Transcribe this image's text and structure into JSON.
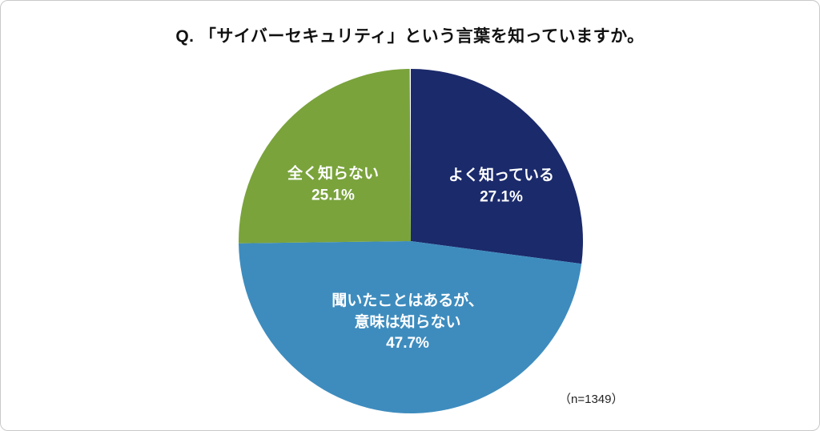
{
  "page": {
    "title": "Q. 「サイバーセキュリティ」という言葉を知っていますか。",
    "sample_size_note": "（n=1349）"
  },
  "chart_data": {
    "type": "pie",
    "title": "Q. 「サイバーセキュリティ」という言葉を知っていますか。",
    "categories": [
      "よく知っている",
      "聞いたことはあるが、意味は知らない",
      "全く知らない"
    ],
    "values": [
      27.1,
      47.7,
      25.1
    ],
    "unit": "%",
    "colors": [
      "#1b2a6b",
      "#3e8cbe",
      "#7aa33c"
    ],
    "start_angle_deg": 0,
    "direction": "clockwise",
    "legend_position": "none",
    "sample_size": 1349,
    "labels": [
      {
        "lines": {
          "0": "よく知っている",
          "1": "27.1%"
        }
      },
      {
        "lines": {
          "0": "聞いたことはあるが、",
          "1": "意味は知らない",
          "2": "47.7%"
        }
      },
      {
        "lines": {
          "0": "全く知らない",
          "1": "25.1%"
        }
      }
    ]
  }
}
